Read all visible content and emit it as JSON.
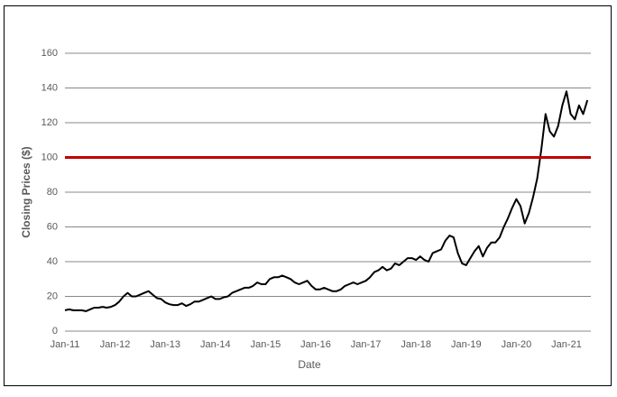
{
  "chart_data": {
    "type": "line",
    "x_label": "Date",
    "y_label": "Closing Prices ($)",
    "x": [
      "Jan-11",
      "Feb-11",
      "Mar-11",
      "Apr-11",
      "May-11",
      "Jun-11",
      "Jul-11",
      "Aug-11",
      "Sep-11",
      "Oct-11",
      "Nov-11",
      "Dec-11",
      "Jan-12",
      "Feb-12",
      "Mar-12",
      "Apr-12",
      "May-12",
      "Jun-12",
      "Jul-12",
      "Aug-12",
      "Sep-12",
      "Oct-12",
      "Nov-12",
      "Dec-12",
      "Jan-13",
      "Feb-13",
      "Mar-13",
      "Apr-13",
      "May-13",
      "Jun-13",
      "Jul-13",
      "Aug-13",
      "Sep-13",
      "Oct-13",
      "Nov-13",
      "Dec-13",
      "Jan-14",
      "Feb-14",
      "Mar-14",
      "Apr-14",
      "May-14",
      "Jun-14",
      "Jul-14",
      "Aug-14",
      "Sep-14",
      "Oct-14",
      "Nov-14",
      "Dec-14",
      "Jan-15",
      "Feb-15",
      "Mar-15",
      "Apr-15",
      "May-15",
      "Jun-15",
      "Jul-15",
      "Aug-15",
      "Sep-15",
      "Oct-15",
      "Nov-15",
      "Dec-15",
      "Jan-16",
      "Feb-16",
      "Mar-16",
      "Apr-16",
      "May-16",
      "Jun-16",
      "Jul-16",
      "Aug-16",
      "Sep-16",
      "Oct-16",
      "Nov-16",
      "Dec-16",
      "Jan-17",
      "Feb-17",
      "Mar-17",
      "Apr-17",
      "May-17",
      "Jun-17",
      "Jul-17",
      "Aug-17",
      "Sep-17",
      "Oct-17",
      "Nov-17",
      "Dec-17",
      "Jan-18",
      "Feb-18",
      "Mar-18",
      "Apr-18",
      "May-18",
      "Jun-18",
      "Jul-18",
      "Aug-18",
      "Sep-18",
      "Oct-18",
      "Nov-18",
      "Dec-18",
      "Jan-19",
      "Feb-19",
      "Mar-19",
      "Apr-19",
      "May-19",
      "Jun-19",
      "Jul-19",
      "Aug-19",
      "Sep-19",
      "Oct-19",
      "Nov-19",
      "Dec-19",
      "Jan-20",
      "Feb-20",
      "Mar-20",
      "Apr-20",
      "May-20",
      "Jun-20",
      "Jul-20",
      "Aug-20",
      "Sep-20",
      "Oct-20",
      "Nov-20",
      "Dec-20",
      "Jan-21",
      "Feb-21",
      "Mar-21",
      "Apr-21",
      "May-21",
      "Jun-21"
    ],
    "xticks": [
      "Jan-11",
      "Jan-12",
      "Jan-13",
      "Jan-14",
      "Jan-15",
      "Jan-16",
      "Jan-17",
      "Jan-18",
      "Jan-19",
      "Jan-20",
      "Jan-21"
    ],
    "values": [
      12,
      12.5,
      12,
      12,
      12,
      11.5,
      12.5,
      13.5,
      13.5,
      14,
      13.5,
      14,
      15,
      17,
      20,
      22,
      20,
      20,
      21,
      22,
      23,
      21,
      19,
      18.5,
      16.5,
      15.5,
      15,
      15,
      16,
      14.5,
      15.5,
      17,
      17,
      18,
      19,
      20,
      18.5,
      18.5,
      19.5,
      20,
      22,
      23,
      24,
      25,
      25,
      26,
      28,
      27,
      27,
      30,
      31,
      31,
      32,
      31,
      30,
      28,
      27,
      28,
      29,
      26,
      24,
      24,
      25,
      24,
      23,
      23,
      24,
      26,
      27,
      28,
      27,
      28,
      29,
      31,
      34,
      35,
      37,
      35,
      36,
      39,
      38,
      40,
      42,
      42,
      41,
      43,
      41,
      40,
      45,
      46,
      47,
      52,
      55,
      54,
      45,
      39,
      38,
      42,
      46,
      49,
      43,
      48,
      51,
      51,
      54,
      60,
      65,
      71,
      76,
      72,
      62,
      68,
      77,
      88,
      105,
      125,
      115,
      112,
      118,
      130,
      138,
      125,
      122,
      130,
      125,
      133
    ],
    "color": "#000000",
    "reference_line": {
      "value": 100,
      "color": "#c00000"
    },
    "ylim": [
      0,
      160
    ],
    "yticks": [
      0,
      20,
      40,
      60,
      80,
      100,
      120,
      140,
      160
    ],
    "grid": true
  }
}
